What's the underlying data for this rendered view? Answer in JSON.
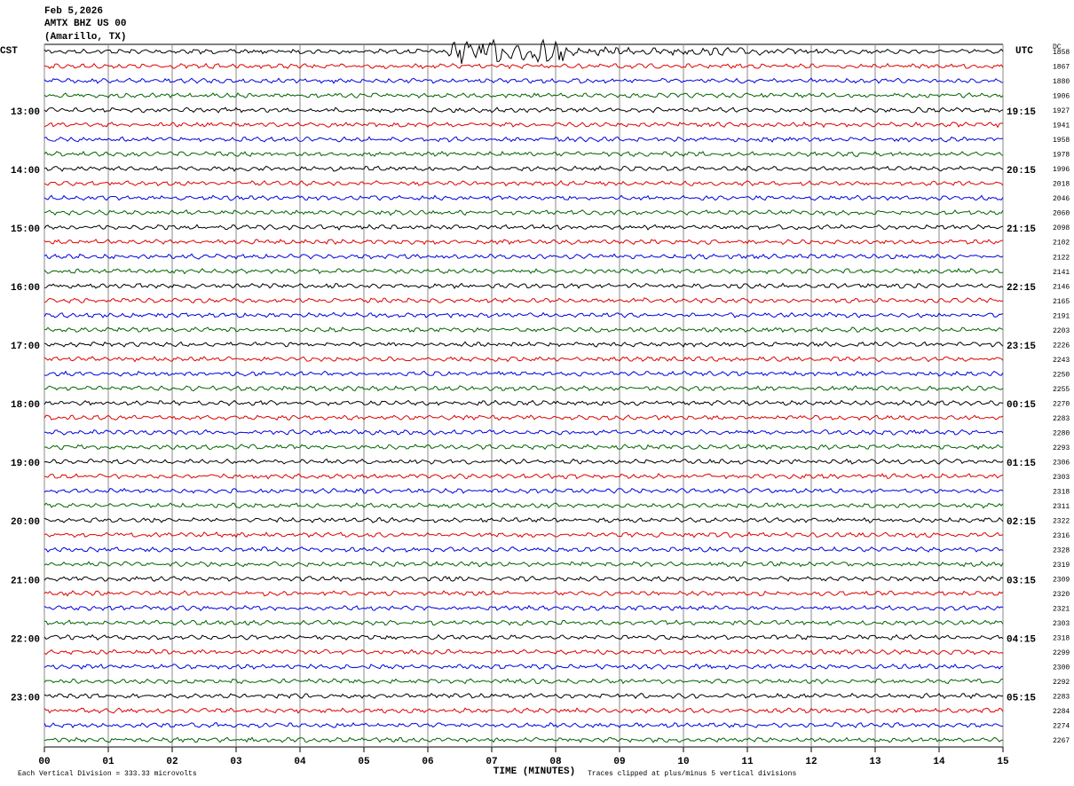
{
  "chart_data": {
    "type": "helicorder",
    "title": "Feb 5,2026",
    "subtitle": "AMTX BHZ US 00",
    "location": "(Amarillo, TX)",
    "left_axis_label": "CST",
    "right_axis_label": "UTC",
    "dc_label": "DC",
    "xlabel": "TIME (MINUTES)",
    "scale_note": "Each Vertical Division =  333.33 microvolts",
    "clip_note": "Traces clipped at plus/minus 5 vertical divisions",
    "xlim": [
      0,
      15
    ],
    "xticks": [
      {
        "value": 0,
        "label": "00"
      },
      {
        "value": 1,
        "label": "01"
      },
      {
        "value": 2,
        "label": "02"
      },
      {
        "value": 3,
        "label": "03"
      },
      {
        "value": 4,
        "label": "04"
      },
      {
        "value": 5,
        "label": "05"
      },
      {
        "value": 6,
        "label": "06"
      },
      {
        "value": 7,
        "label": "07"
      },
      {
        "value": 8,
        "label": "08"
      },
      {
        "value": 9,
        "label": "09"
      },
      10,
      11,
      12,
      13,
      14,
      15
    ],
    "grid": true,
    "trace_colors": [
      "#000000",
      "#e00000",
      "#0000e0",
      "#006400"
    ],
    "rows": [
      {
        "cst": null,
        "utc": null,
        "dc": 1858
      },
      {
        "cst": null,
        "utc": null,
        "dc": 1867
      },
      {
        "cst": null,
        "utc": null,
        "dc": 1880
      },
      {
        "cst": null,
        "utc": null,
        "dc": 1906
      },
      {
        "cst": "13:00",
        "utc": "19:15",
        "dc": 1927
      },
      {
        "cst": null,
        "utc": null,
        "dc": 1941
      },
      {
        "cst": null,
        "utc": null,
        "dc": 1958
      },
      {
        "cst": null,
        "utc": null,
        "dc": 1978
      },
      {
        "cst": "14:00",
        "utc": "20:15",
        "dc": 1996
      },
      {
        "cst": null,
        "utc": null,
        "dc": 2018
      },
      {
        "cst": null,
        "utc": null,
        "dc": 2046
      },
      {
        "cst": null,
        "utc": null,
        "dc": 2060
      },
      {
        "cst": "15:00",
        "utc": "21:15",
        "dc": 2098
      },
      {
        "cst": null,
        "utc": null,
        "dc": 2102
      },
      {
        "cst": null,
        "utc": null,
        "dc": 2122
      },
      {
        "cst": null,
        "utc": null,
        "dc": 2141
      },
      {
        "cst": "16:00",
        "utc": "22:15",
        "dc": 2146
      },
      {
        "cst": null,
        "utc": null,
        "dc": 2165
      },
      {
        "cst": null,
        "utc": null,
        "dc": 2191
      },
      {
        "cst": null,
        "utc": null,
        "dc": 2203
      },
      {
        "cst": "17:00",
        "utc": "23:15",
        "dc": 2226
      },
      {
        "cst": null,
        "utc": null,
        "dc": 2243
      },
      {
        "cst": null,
        "utc": null,
        "dc": 2250
      },
      {
        "cst": null,
        "utc": null,
        "dc": 2255
      },
      {
        "cst": "18:00",
        "utc": "00:15",
        "dc": 2270
      },
      {
        "cst": null,
        "utc": null,
        "dc": 2283
      },
      {
        "cst": null,
        "utc": null,
        "dc": 2280
      },
      {
        "cst": null,
        "utc": null,
        "dc": 2293
      },
      {
        "cst": "19:00",
        "utc": "01:15",
        "dc": 2306
      },
      {
        "cst": null,
        "utc": null,
        "dc": 2303
      },
      {
        "cst": null,
        "utc": null,
        "dc": 2318
      },
      {
        "cst": null,
        "utc": null,
        "dc": 2311
      },
      {
        "cst": "20:00",
        "utc": "02:15",
        "dc": 2322
      },
      {
        "cst": null,
        "utc": null,
        "dc": 2316
      },
      {
        "cst": null,
        "utc": null,
        "dc": 2328
      },
      {
        "cst": null,
        "utc": null,
        "dc": 2319
      },
      {
        "cst": "21:00",
        "utc": "03:15",
        "dc": 2309
      },
      {
        "cst": null,
        "utc": null,
        "dc": 2320
      },
      {
        "cst": null,
        "utc": null,
        "dc": 2321
      },
      {
        "cst": null,
        "utc": null,
        "dc": 2303
      },
      {
        "cst": "22:00",
        "utc": "04:15",
        "dc": 2318
      },
      {
        "cst": null,
        "utc": null,
        "dc": 2299
      },
      {
        "cst": null,
        "utc": null,
        "dc": 2300
      },
      {
        "cst": null,
        "utc": null,
        "dc": 2292
      },
      {
        "cst": "23:00",
        "utc": "05:15",
        "dc": 2283
      },
      {
        "cst": null,
        "utc": null,
        "dc": 2284
      },
      {
        "cst": null,
        "utc": null,
        "dc": 2274
      },
      {
        "cst": null,
        "utc": null,
        "dc": 2267
      }
    ]
  }
}
